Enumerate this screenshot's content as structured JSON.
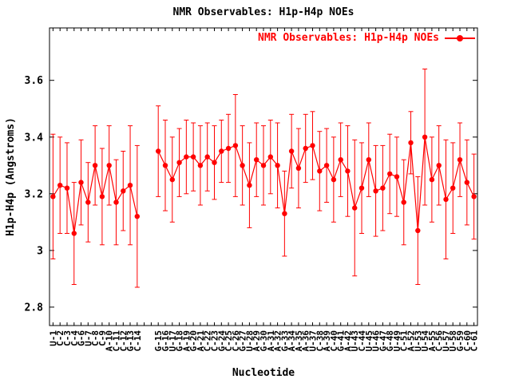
{
  "figure": {
    "background": "#ffffff",
    "text_color": "#000000"
  },
  "chart_data": {
    "type": "line",
    "subtype": "linespoints-with-errorbars",
    "title": "NMR Observables: H1p-H4p NOEs",
    "legend": {
      "label": "NMR Observables: H1p-H4p NOEs",
      "position": "top-right-inside"
    },
    "xlabel": "Nucleotide",
    "ylabel": "H1p-H4p (Angstroms)",
    "series_color": "#ff0000",
    "grid": false,
    "ylim": [
      2.735,
      3.785
    ],
    "yticks": [
      2.8,
      3.0,
      3.2,
      3.4,
      3.6
    ],
    "ytick_labels": [
      "2.8",
      "3",
      "3.2",
      "3.4",
      "3.6"
    ],
    "categories": [
      "U-1",
      "C-2",
      "C-3",
      "C-4",
      "G-6",
      "U-7",
      "C-8",
      "C-9",
      "A-10",
      "C-11",
      "C-12",
      "G-13",
      "C-14",
      "",
      "",
      "G-15",
      "G-16",
      "U-17",
      "G-18",
      "A-19",
      "G-20",
      "A-21",
      "C-22",
      "C-23",
      "G-24",
      "C-25",
      "C-26",
      "G-27",
      "U-28",
      "A-29",
      "G-30",
      "A-31",
      "A-32",
      "G-33",
      "A-34",
      "A-35",
      "A-36",
      "U-37",
      "C-38",
      "A-39",
      "C-40",
      "G-41",
      "A-42",
      "U-43",
      "C-44",
      "U-45",
      "U-46",
      "G-47",
      "G-48",
      "U-49",
      "C-51",
      "A-52",
      "U-53",
      "U-54",
      "A-55",
      "C-56",
      "U-57",
      "U-58",
      "G-59",
      "C-60",
      "C-61"
    ],
    "values": [
      3.19,
      3.23,
      3.22,
      3.06,
      3.24,
      3.17,
      3.3,
      3.19,
      3.3,
      3.17,
      3.21,
      3.23,
      3.12,
      null,
      null,
      3.35,
      3.3,
      3.25,
      3.31,
      3.33,
      3.33,
      3.3,
      3.33,
      3.31,
      3.35,
      3.36,
      3.37,
      3.3,
      3.23,
      3.32,
      3.3,
      3.33,
      3.3,
      3.13,
      3.35,
      3.29,
      3.36,
      3.37,
      3.28,
      3.3,
      3.25,
      3.32,
      3.28,
      3.15,
      3.22,
      3.32,
      3.21,
      3.22,
      3.27,
      3.26,
      3.17,
      3.38,
      3.07,
      3.4,
      3.25,
      3.3,
      3.18,
      3.22,
      3.32,
      3.24,
      3.19
    ],
    "errors": [
      0.22,
      0.17,
      0.16,
      0.18,
      0.15,
      0.14,
      0.14,
      0.17,
      0.14,
      0.15,
      0.14,
      0.21,
      0.25,
      null,
      null,
      0.16,
      0.16,
      0.15,
      0.12,
      0.13,
      0.12,
      0.14,
      0.12,
      0.13,
      0.11,
      0.12,
      0.18,
      0.14,
      0.15,
      0.13,
      0.14,
      0.13,
      0.15,
      0.15,
      0.13,
      0.14,
      0.12,
      0.12,
      0.14,
      0.13,
      0.15,
      0.13,
      0.16,
      0.24,
      0.16,
      0.13,
      0.16,
      0.15,
      0.14,
      0.14,
      0.15,
      0.11,
      0.19,
      0.24,
      0.15,
      0.14,
      0.21,
      0.16,
      0.13,
      0.15,
      0.15
    ]
  }
}
